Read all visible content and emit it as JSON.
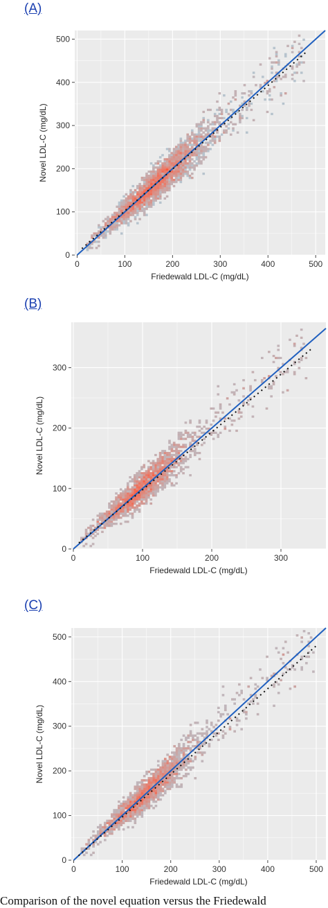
{
  "panels_label_color": "#1a3fb0",
  "colors": {
    "panel_bg": "#ebebeb",
    "grid": "#ffffff",
    "low_density": "#a8d8ea",
    "high_density": "#ff5a3c",
    "identity_line": "#1f5fbf",
    "fit_line": "#111111"
  },
  "chart_data": [
    {
      "panel_label": "(A)",
      "type": "heatmap",
      "xlabel": "Friedewald LDL-C (mg/dL)",
      "ylabel": "Novel LDL-C (mg/dL)",
      "xlim": [
        -5,
        520
      ],
      "ylim": [
        0,
        520
      ],
      "xticks": [
        0,
        100,
        200,
        300,
        400,
        500
      ],
      "yticks": [
        0,
        100,
        200,
        300,
        400,
        500
      ],
      "center_range": [
        20,
        480
      ],
      "dense_center": 165,
      "fit": [
        [
          10,
          15
        ],
        [
          480,
          470
        ]
      ],
      "identity": [
        [
          0,
          0
        ],
        [
          520,
          520
        ]
      ]
    },
    {
      "panel_label": "(B)",
      "type": "heatmap",
      "xlabel": "Friedewald LDL-C (mg/dL)",
      "ylabel": "Novel LDL-C (mg/dL)",
      "xlim": [
        -3,
        365
      ],
      "ylim": [
        0,
        375
      ],
      "xticks": [
        0,
        100,
        200,
        300
      ],
      "yticks": [
        0,
        100,
        200,
        300
      ],
      "center_range": [
        10,
        340
      ],
      "dense_center": 100,
      "fit": [
        [
          8,
          10
        ],
        [
          345,
          332
        ]
      ],
      "identity": [
        [
          0,
          0
        ],
        [
          365,
          365
        ]
      ]
    },
    {
      "panel_label": "(C)",
      "type": "heatmap",
      "xlabel": "Friedewald LDL-C (mg/dL)",
      "ylabel": "Novel LDL-C (mg/dL)",
      "xlim": [
        -5,
        520
      ],
      "ylim": [
        0,
        520
      ],
      "xticks": [
        0,
        100,
        200,
        300,
        400,
        500
      ],
      "yticks": [
        0,
        100,
        200,
        300,
        400,
        500
      ],
      "center_range": [
        15,
        500
      ],
      "dense_center": 150,
      "fit": [
        [
          10,
          10
        ],
        [
          500,
          480
        ]
      ],
      "identity": [
        [
          0,
          0
        ],
        [
          520,
          520
        ]
      ]
    }
  ],
  "caption": "Comparison of the novel equation versus the Friedewald"
}
